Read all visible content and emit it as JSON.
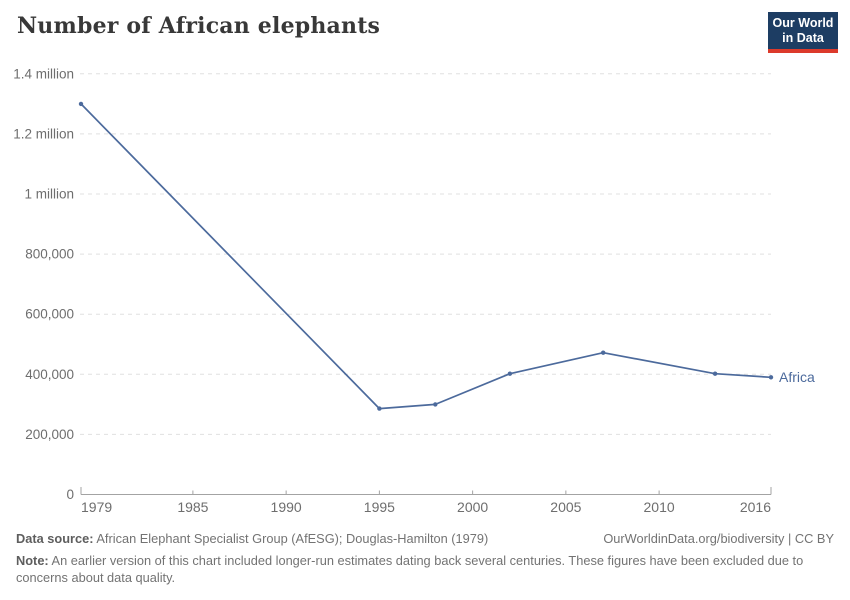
{
  "header": {
    "title": "Number of African elephants",
    "logo": {
      "line1": "Our World",
      "line2": "in Data",
      "bg_color": "#1d3d63",
      "accent_color": "#dc3a2b"
    }
  },
  "chart_data": {
    "type": "line",
    "title": "Number of African elephants",
    "xlabel": "",
    "ylabel": "",
    "xlim": [
      1979,
      2016
    ],
    "ylim": [
      0,
      1400000
    ],
    "grid": "horizontal-dashed",
    "legend_position": "end-of-line-label",
    "x_ticks": [
      1979,
      1985,
      1990,
      1995,
      2000,
      2005,
      2010,
      2016
    ],
    "y_ticks": [
      {
        "value": 0,
        "label": "0"
      },
      {
        "value": 200000,
        "label": "200,000"
      },
      {
        "value": 400000,
        "label": "400,000"
      },
      {
        "value": 600000,
        "label": "600,000"
      },
      {
        "value": 800000,
        "label": "800,000"
      },
      {
        "value": 1000000,
        "label": "1 million"
      },
      {
        "value": 1200000,
        "label": "1.2 million"
      },
      {
        "value": 1400000,
        "label": "1.4 million"
      }
    ],
    "series": [
      {
        "name": "Africa",
        "end_label": "Africa",
        "color": "#4c6a9c",
        "points": [
          {
            "x": 1979,
            "y": 1300000
          },
          {
            "x": 1995,
            "y": 286000
          },
          {
            "x": 1998,
            "y": 300000
          },
          {
            "x": 2002,
            "y": 402000
          },
          {
            "x": 2007,
            "y": 472000
          },
          {
            "x": 2013,
            "y": 402000
          },
          {
            "x": 2016,
            "y": 390000
          }
        ]
      }
    ]
  },
  "footer": {
    "data_source_label": "Data source:",
    "data_source_text": " African Elephant Specialist Group (AfESG); Douglas-Hamilton (1979)",
    "attribution": "OurWorldinData.org/biodiversity | CC BY",
    "note_label": "Note:",
    "note_text": " An earlier version of this chart included longer-run estimates dating back several centuries. These figures have been excluded due to concerns about data quality."
  }
}
